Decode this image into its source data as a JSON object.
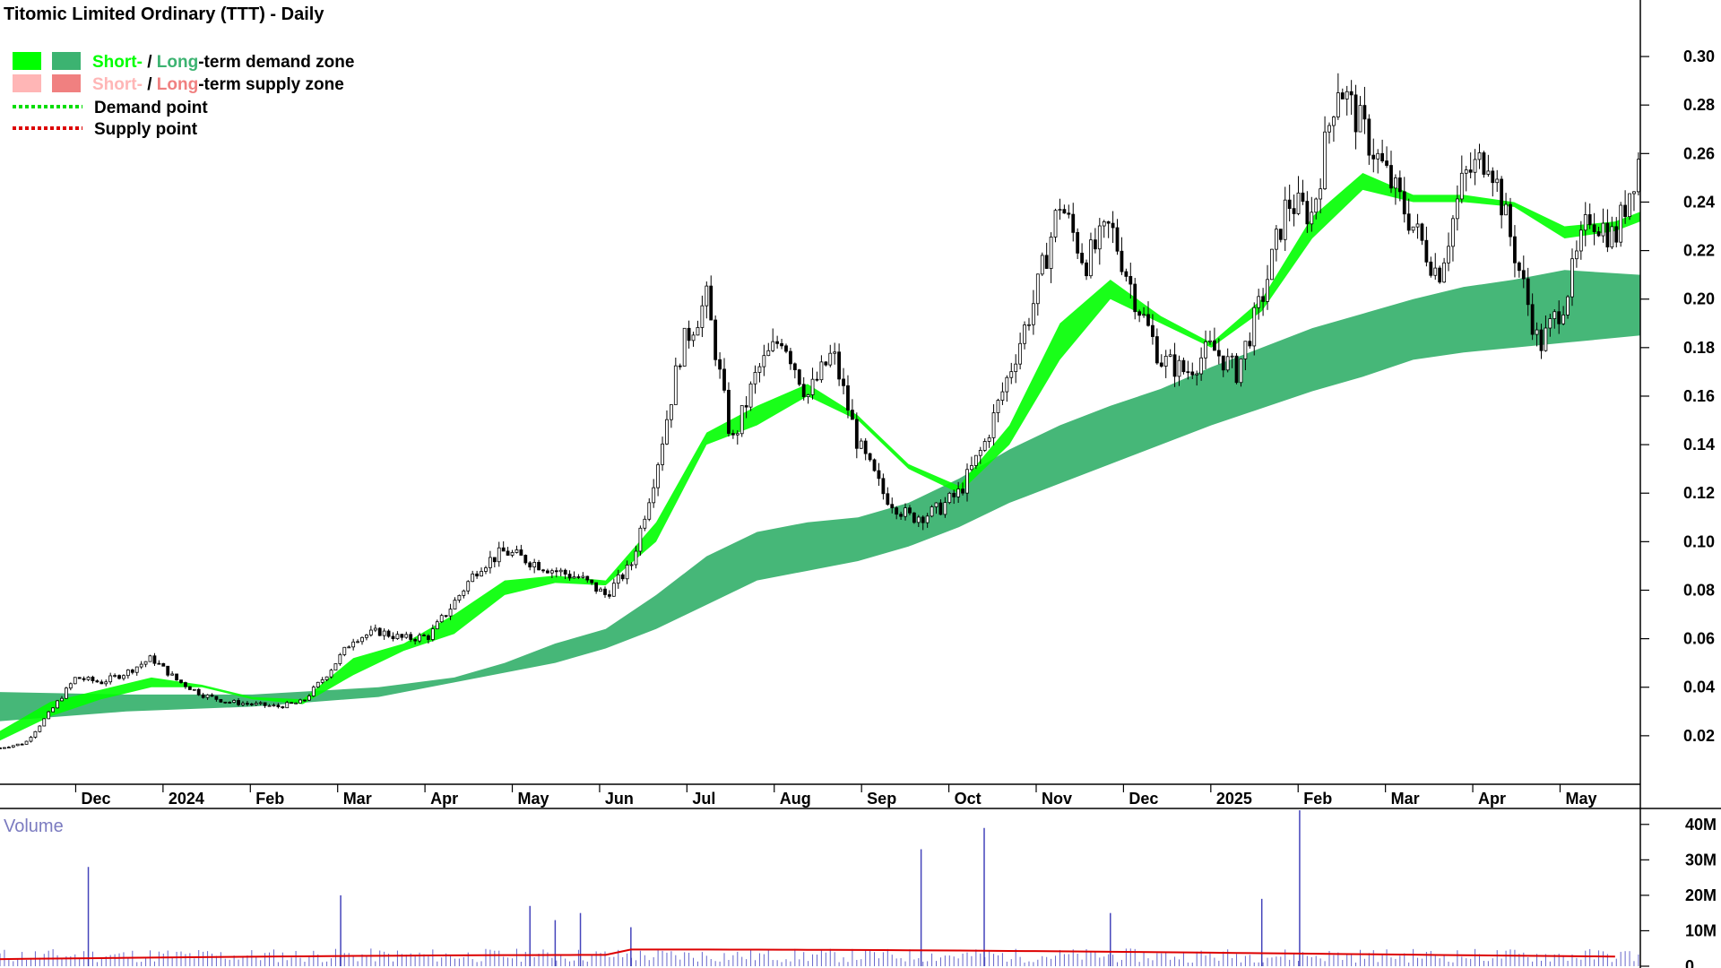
{
  "chart_data": [
    {
      "type": "candlestick",
      "title": "Titomic Limited Ordinary (TTT) - Daily",
      "price_axis": {
        "ticks": [
          "0.30",
          "0.28",
          "0.26",
          "0.24",
          "0.22",
          "0.20",
          "0.18",
          "0.16",
          "0.14",
          "0.12",
          "0.10",
          "0.08",
          "0.06",
          "0.04",
          "0.02"
        ],
        "ylim": [
          0.0,
          0.31
        ]
      },
      "x_axis": {
        "labels": [
          "Dec",
          "2024",
          "Feb",
          "Mar",
          "Apr",
          "May",
          "Jun",
          "Jul",
          "Aug",
          "Sep",
          "Oct",
          "Nov",
          "Dec",
          "2025",
          "Feb",
          "Mar",
          "Apr",
          "May"
        ]
      },
      "legend": {
        "position": "top-left",
        "items": [
          {
            "short": "Short-",
            "sep": " / ",
            "long": "Long",
            "rest": "-term demand zone",
            "short_color": "#00ff00",
            "long_color": "#3cb371"
          },
          {
            "short": "Short-",
            "sep": " / ",
            "long": "Long",
            "rest": "-term supply zone",
            "short_color": "#ffb6b6",
            "long_color": "#f08080"
          },
          {
            "label": "Demand point",
            "color": "#00dd00"
          },
          {
            "label": "Supply point",
            "color": "#dd0000"
          }
        ]
      },
      "close_path": [
        [
          0,
          0.015
        ],
        [
          0.02,
          0.017
        ],
        [
          0.04,
          0.03
        ],
        [
          0.06,
          0.044
        ],
        [
          0.08,
          0.042
        ],
        [
          0.1,
          0.046
        ],
        [
          0.12,
          0.052
        ],
        [
          0.14,
          0.043
        ],
        [
          0.16,
          0.037
        ],
        [
          0.18,
          0.034
        ],
        [
          0.2,
          0.033
        ],
        [
          0.22,
          0.032
        ],
        [
          0.24,
          0.034
        ],
        [
          0.26,
          0.046
        ],
        [
          0.28,
          0.06
        ],
        [
          0.3,
          0.063
        ],
        [
          0.32,
          0.06
        ],
        [
          0.34,
          0.061
        ],
        [
          0.36,
          0.075
        ],
        [
          0.38,
          0.09
        ],
        [
          0.4,
          0.096
        ],
        [
          0.42,
          0.092
        ],
        [
          0.44,
          0.088
        ],
        [
          0.46,
          0.085
        ],
        [
          0.48,
          0.078
        ],
        [
          0.5,
          0.09
        ],
        [
          0.52,
          0.13
        ],
        [
          0.54,
          0.18
        ],
        [
          0.56,
          0.2
        ],
        [
          0.58,
          0.14
        ],
        [
          0.6,
          0.17
        ],
        [
          0.62,
          0.185
        ],
        [
          0.64,
          0.16
        ],
        [
          0.66,
          0.178
        ],
        [
          0.68,
          0.14
        ],
        [
          0.7,
          0.12
        ],
        [
          0.72,
          0.11
        ],
        [
          0.74,
          0.112
        ],
        [
          0.76,
          0.12
        ],
        [
          0.78,
          0.14
        ],
        [
          0.8,
          0.17
        ],
        [
          0.82,
          0.2
        ],
        [
          0.84,
          0.24
        ],
        [
          0.86,
          0.215
        ],
        [
          0.88,
          0.23
        ],
        [
          0.9,
          0.2
        ],
        [
          0.92,
          0.175
        ],
        [
          0.94,
          0.17
        ],
        [
          0.96,
          0.18
        ],
        [
          0.98,
          0.17
        ],
        [
          1.0,
          0.2
        ],
        [
          1.02,
          0.24
        ],
        [
          1.04,
          0.235
        ],
        [
          1.06,
          0.29
        ],
        [
          1.08,
          0.27
        ],
        [
          1.1,
          0.25
        ],
        [
          1.12,
          0.23
        ],
        [
          1.14,
          0.21
        ],
        [
          1.16,
          0.25
        ],
        [
          1.18,
          0.26
        ],
        [
          1.2,
          0.22
        ],
        [
          1.22,
          0.18
        ],
        [
          1.24,
          0.2
        ],
        [
          1.26,
          0.235
        ],
        [
          1.28,
          0.225
        ],
        [
          1.3,
          0.26
        ]
      ],
      "short_term_zone": [
        [
          0,
          0.018,
          0.022
        ],
        [
          0.04,
          0.028,
          0.034
        ],
        [
          0.08,
          0.035,
          0.039
        ],
        [
          0.12,
          0.04,
          0.044
        ],
        [
          0.16,
          0.04,
          0.041
        ],
        [
          0.2,
          0.035,
          0.036
        ],
        [
          0.24,
          0.033,
          0.035
        ],
        [
          0.28,
          0.045,
          0.052
        ],
        [
          0.32,
          0.055,
          0.058
        ],
        [
          0.36,
          0.062,
          0.07
        ],
        [
          0.4,
          0.078,
          0.084
        ],
        [
          0.44,
          0.083,
          0.086
        ],
        [
          0.48,
          0.082,
          0.084
        ],
        [
          0.52,
          0.1,
          0.108
        ],
        [
          0.56,
          0.14,
          0.145
        ],
        [
          0.6,
          0.148,
          0.156
        ],
        [
          0.64,
          0.16,
          0.165
        ],
        [
          0.68,
          0.15,
          0.152
        ],
        [
          0.72,
          0.13,
          0.132
        ],
        [
          0.76,
          0.12,
          0.123
        ],
        [
          0.8,
          0.14,
          0.148
        ],
        [
          0.84,
          0.175,
          0.19
        ],
        [
          0.88,
          0.2,
          0.208
        ],
        [
          0.92,
          0.19,
          0.193
        ],
        [
          0.96,
          0.18,
          0.182
        ],
        [
          1.0,
          0.195,
          0.2
        ],
        [
          1.04,
          0.225,
          0.234
        ],
        [
          1.08,
          0.245,
          0.252
        ],
        [
          1.12,
          0.24,
          0.243
        ],
        [
          1.16,
          0.24,
          0.243
        ],
        [
          1.2,
          0.238,
          0.24
        ],
        [
          1.24,
          0.225,
          0.23
        ],
        [
          1.28,
          0.228,
          0.232
        ],
        [
          1.3,
          0.232,
          0.236
        ]
      ],
      "long_term_zone": [
        [
          0,
          0.026,
          0.038
        ],
        [
          0.1,
          0.03,
          0.037
        ],
        [
          0.2,
          0.032,
          0.037
        ],
        [
          0.3,
          0.036,
          0.04
        ],
        [
          0.36,
          0.042,
          0.044
        ],
        [
          0.4,
          0.046,
          0.05
        ],
        [
          0.44,
          0.05,
          0.058
        ],
        [
          0.48,
          0.056,
          0.064
        ],
        [
          0.52,
          0.064,
          0.078
        ],
        [
          0.56,
          0.074,
          0.094
        ],
        [
          0.6,
          0.084,
          0.104
        ],
        [
          0.64,
          0.088,
          0.108
        ],
        [
          0.68,
          0.092,
          0.11
        ],
        [
          0.72,
          0.098,
          0.116
        ],
        [
          0.76,
          0.106,
          0.126
        ],
        [
          0.8,
          0.116,
          0.138
        ],
        [
          0.84,
          0.124,
          0.148
        ],
        [
          0.88,
          0.132,
          0.156
        ],
        [
          0.92,
          0.14,
          0.163
        ],
        [
          0.96,
          0.148,
          0.172
        ],
        [
          1.0,
          0.155,
          0.18
        ],
        [
          1.04,
          0.162,
          0.188
        ],
        [
          1.08,
          0.168,
          0.194
        ],
        [
          1.12,
          0.175,
          0.2
        ],
        [
          1.16,
          0.178,
          0.205
        ],
        [
          1.2,
          0.18,
          0.208
        ],
        [
          1.24,
          0.182,
          0.212
        ],
        [
          1.3,
          0.185,
          0.21
        ]
      ]
    },
    {
      "type": "bar",
      "title": "Volume",
      "y_axis": {
        "ticks": [
          "40M",
          "30M",
          "20M",
          "10M",
          "0"
        ],
        "ylim": [
          0,
          45
        ]
      },
      "spikes": [
        [
          0.07,
          28
        ],
        [
          0.27,
          20
        ],
        [
          0.42,
          17
        ],
        [
          0.44,
          13
        ],
        [
          0.46,
          15
        ],
        [
          0.5,
          11
        ],
        [
          0.73,
          33
        ],
        [
          0.78,
          39
        ],
        [
          0.88,
          15
        ],
        [
          1.0,
          19
        ],
        [
          1.03,
          44
        ]
      ],
      "moving_average": {
        "color": "#dd0000"
      }
    }
  ]
}
